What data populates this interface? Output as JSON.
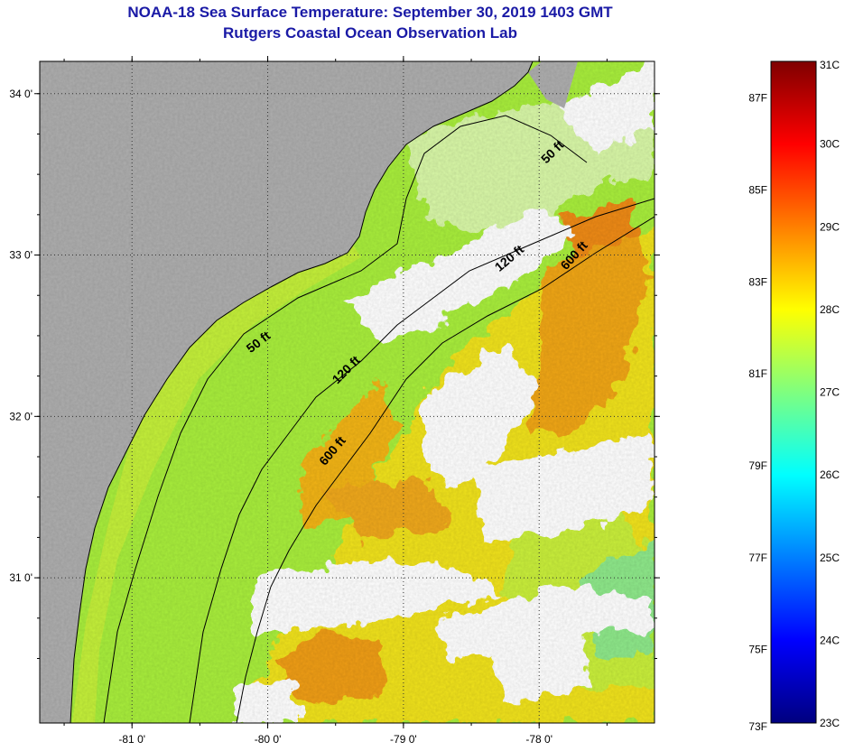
{
  "title": {
    "line1": "NOAA-18 Sea Surface Temperature:  September 30, 2019 1403 GMT",
    "line2": "Rutgers Coastal Ocean Observation Lab"
  },
  "map": {
    "lon_range": [
      -81.68,
      -77.15
    ],
    "lat_range": [
      30.1,
      34.2
    ],
    "lon_ticks": [
      {
        "value": -81,
        "label": "-81 0'"
      },
      {
        "value": -80,
        "label": "-80 0'"
      },
      {
        "value": -79,
        "label": "-79 0'"
      },
      {
        "value": -78,
        "label": "-78 0'"
      }
    ],
    "lat_ticks": [
      {
        "value": 34,
        "label": "34 0'"
      },
      {
        "value": 33,
        "label": "33 0'"
      },
      {
        "value": 32,
        "label": "32 0'"
      },
      {
        "value": 31,
        "label": "31 0'"
      }
    ],
    "land_color": "#aeaeae",
    "cloud_color": "#ffffff",
    "grid": "dotted",
    "contour_labels": [
      {
        "text": "50 ft",
        "lon": -77.88,
        "lat": 33.62
      },
      {
        "text": "120 ft",
        "lon": -78.2,
        "lat": 32.96
      },
      {
        "text": "600 ft",
        "lon": -77.72,
        "lat": 32.98
      },
      {
        "text": "50 ft",
        "lon": -80.05,
        "lat": 32.44
      },
      {
        "text": "120 ft",
        "lon": -79.4,
        "lat": 32.27
      },
      {
        "text": "600 ft",
        "lon": -79.5,
        "lat": 31.77
      }
    ]
  },
  "colorbar": {
    "min_c": 23,
    "max_c": 31,
    "celsius_labels": [
      "31C",
      "30C",
      "29C",
      "28C",
      "27C",
      "26C",
      "25C",
      "24C",
      "23C"
    ],
    "fahrenheit_labels": [
      "87F",
      "85F",
      "83F",
      "81F",
      "79F",
      "77F",
      "75F",
      "73F"
    ],
    "colors": [
      "#00007f",
      "#0000ff",
      "#007fff",
      "#00ffff",
      "#7fff7f",
      "#ffff00",
      "#ff7f00",
      "#ff0000",
      "#7f0000"
    ]
  }
}
